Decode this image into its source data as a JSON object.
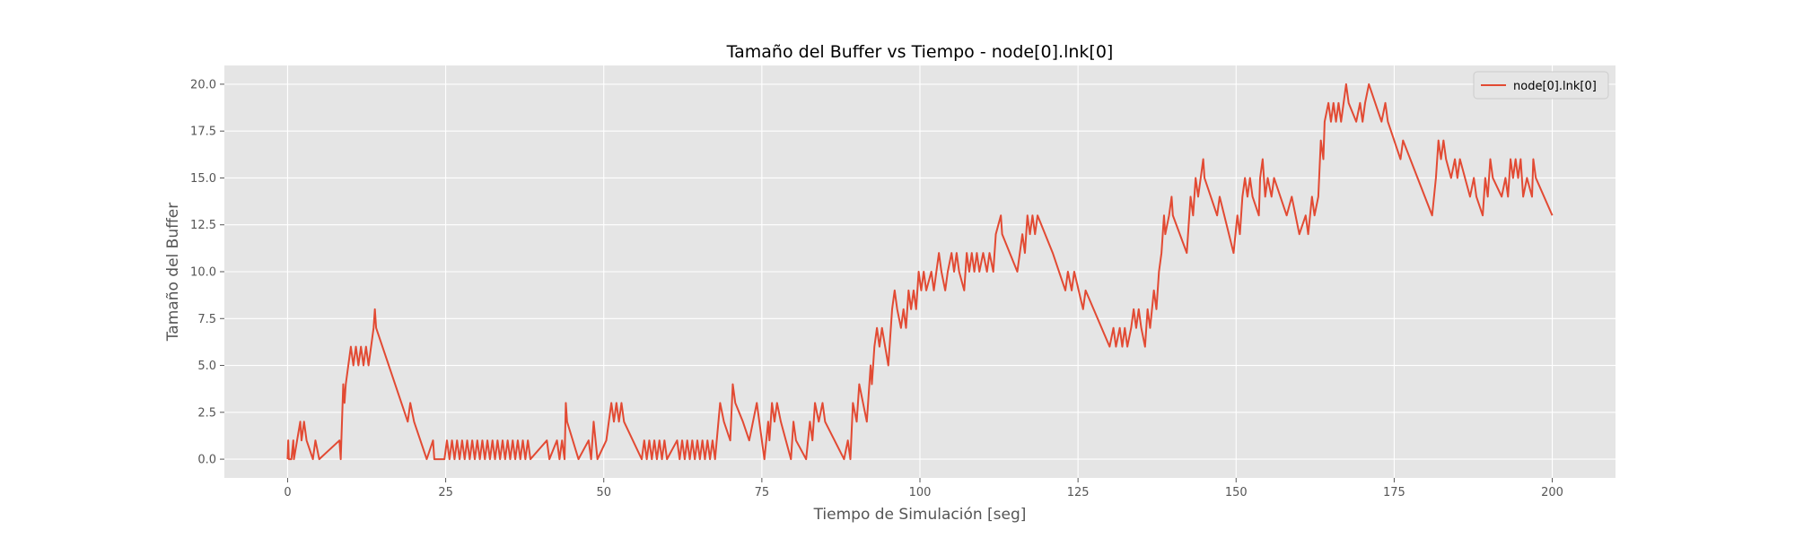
{
  "chart_data": {
    "type": "line",
    "title": "Tamaño del Buffer vs Tiempo - node[0].lnk[0]",
    "xlabel": "Tiempo de Simulación [seg]",
    "ylabel": "Tamaño del Buffer",
    "xlim": [
      -10,
      210
    ],
    "ylim": [
      -1,
      21
    ],
    "xticks": [
      0,
      25,
      50,
      75,
      100,
      125,
      150,
      175,
      200
    ],
    "xtick_labels": [
      "0",
      "25",
      "50",
      "75",
      "100",
      "125",
      "150",
      "175",
      "200"
    ],
    "yticks": [
      0,
      2.5,
      5,
      7.5,
      10,
      12.5,
      15,
      17.5,
      20
    ],
    "ytick_labels": [
      "0.0",
      "2.5",
      "5.0",
      "7.5",
      "10.0",
      "12.5",
      "15.0",
      "17.5",
      "20.0"
    ],
    "grid": true,
    "legend_position": "top-right",
    "colors": {
      "background": "#e5e5e5",
      "grid": "#ffffff",
      "line": "#e24a33"
    },
    "series": [
      {
        "name": "node[0].lnk[0]",
        "color": "#e24a33",
        "points": [
          [
            0,
            0
          ],
          [
            0.1,
            1
          ],
          [
            0.2,
            0
          ],
          [
            0.6,
            0
          ],
          [
            0.9,
            1
          ],
          [
            1,
            0
          ],
          [
            1.5,
            1
          ],
          [
            2,
            2
          ],
          [
            2.2,
            1
          ],
          [
            2.6,
            2
          ],
          [
            3,
            1
          ],
          [
            4,
            0
          ],
          [
            4.4,
            1
          ],
          [
            5,
            0
          ],
          [
            8.2,
            1
          ],
          [
            8.4,
            0
          ],
          [
            8.8,
            4
          ],
          [
            9,
            3
          ],
          [
            9.2,
            4
          ],
          [
            9.6,
            5
          ],
          [
            10,
            6
          ],
          [
            10.4,
            5
          ],
          [
            10.8,
            6
          ],
          [
            11.2,
            5
          ],
          [
            11.6,
            6
          ],
          [
            12,
            5
          ],
          [
            12.4,
            6
          ],
          [
            12.8,
            5
          ],
          [
            13.2,
            6
          ],
          [
            13.6,
            7
          ],
          [
            13.8,
            8
          ],
          [
            14,
            7
          ],
          [
            19,
            2
          ],
          [
            19.4,
            3
          ],
          [
            20,
            2
          ],
          [
            22,
            0
          ],
          [
            23,
            1
          ],
          [
            23.2,
            0
          ],
          [
            24.8,
            0
          ],
          [
            25.2,
            1
          ],
          [
            25.6,
            0
          ],
          [
            26,
            1
          ],
          [
            26.4,
            0
          ],
          [
            26.8,
            1
          ],
          [
            27.2,
            0
          ],
          [
            27.6,
            1
          ],
          [
            28,
            0
          ],
          [
            28.4,
            1
          ],
          [
            28.8,
            0
          ],
          [
            29.2,
            1
          ],
          [
            29.6,
            0
          ],
          [
            30,
            1
          ],
          [
            30.4,
            0
          ],
          [
            30.8,
            1
          ],
          [
            31.2,
            0
          ],
          [
            31.6,
            1
          ],
          [
            32,
            0
          ],
          [
            32.4,
            1
          ],
          [
            32.8,
            0
          ],
          [
            33.2,
            1
          ],
          [
            33.6,
            0
          ],
          [
            34,
            1
          ],
          [
            34.4,
            0
          ],
          [
            34.8,
            1
          ],
          [
            35.2,
            0
          ],
          [
            35.6,
            1
          ],
          [
            36,
            0
          ],
          [
            36.4,
            1
          ],
          [
            36.8,
            0
          ],
          [
            37.2,
            1
          ],
          [
            37.6,
            0
          ],
          [
            38,
            1
          ],
          [
            38.4,
            0
          ],
          [
            41,
            1
          ],
          [
            41.4,
            0
          ],
          [
            42.6,
            1
          ],
          [
            43,
            0
          ],
          [
            43.4,
            1
          ],
          [
            43.8,
            0
          ],
          [
            44,
            3
          ],
          [
            44.2,
            2
          ],
          [
            46,
            0
          ],
          [
            47.6,
            1
          ],
          [
            48,
            0
          ],
          [
            48.4,
            2
          ],
          [
            49,
            0
          ],
          [
            50.4,
            1
          ],
          [
            50.8,
            2
          ],
          [
            51.2,
            3
          ],
          [
            51.6,
            2
          ],
          [
            52,
            3
          ],
          [
            52.4,
            2
          ],
          [
            52.8,
            3
          ],
          [
            53.2,
            2
          ],
          [
            56,
            0
          ],
          [
            56.4,
            1
          ],
          [
            56.8,
            0
          ],
          [
            57.2,
            1
          ],
          [
            57.6,
            0
          ],
          [
            58,
            1
          ],
          [
            58.4,
            0
          ],
          [
            58.8,
            1
          ],
          [
            59.2,
            0
          ],
          [
            59.6,
            1
          ],
          [
            60,
            0
          ],
          [
            61.6,
            1
          ],
          [
            62,
            0
          ],
          [
            62.4,
            1
          ],
          [
            62.8,
            0
          ],
          [
            63.2,
            1
          ],
          [
            63.6,
            0
          ],
          [
            64,
            1
          ],
          [
            64.4,
            0
          ],
          [
            64.8,
            1
          ],
          [
            65.2,
            0
          ],
          [
            65.6,
            1
          ],
          [
            66,
            0
          ],
          [
            66.4,
            1
          ],
          [
            66.8,
            0
          ],
          [
            67.2,
            1
          ],
          [
            67.6,
            0
          ],
          [
            68.4,
            3
          ],
          [
            69,
            2
          ],
          [
            70,
            1
          ],
          [
            70.4,
            4
          ],
          [
            70.8,
            3
          ],
          [
            72,
            2
          ],
          [
            73,
            1
          ],
          [
            74.2,
            3
          ],
          [
            75.4,
            0
          ],
          [
            76,
            2
          ],
          [
            76.2,
            1
          ],
          [
            76.6,
            3
          ],
          [
            77,
            2
          ],
          [
            77.4,
            3
          ],
          [
            78,
            2
          ],
          [
            79.6,
            0
          ],
          [
            80,
            2
          ],
          [
            80.4,
            1
          ],
          [
            82,
            0
          ],
          [
            82.6,
            2
          ],
          [
            83,
            1
          ],
          [
            83.4,
            3
          ],
          [
            84,
            2
          ],
          [
            84.6,
            3
          ],
          [
            85,
            2
          ],
          [
            88,
            0
          ],
          [
            88.6,
            1
          ],
          [
            89,
            0
          ],
          [
            89.4,
            3
          ],
          [
            90,
            2
          ],
          [
            90.4,
            4
          ],
          [
            91.6,
            2
          ],
          [
            92.2,
            5
          ],
          [
            92.4,
            4
          ],
          [
            92.8,
            6
          ],
          [
            93.2,
            7
          ],
          [
            93.6,
            6
          ],
          [
            94,
            7
          ],
          [
            95,
            5
          ],
          [
            95.6,
            8
          ],
          [
            96,
            9
          ],
          [
            96.4,
            8
          ],
          [
            97,
            7
          ],
          [
            97.4,
            8
          ],
          [
            97.8,
            7
          ],
          [
            98.2,
            9
          ],
          [
            98.6,
            8
          ],
          [
            99,
            9
          ],
          [
            99.4,
            8
          ],
          [
            99.8,
            10
          ],
          [
            100.2,
            9
          ],
          [
            100.6,
            10
          ],
          [
            101,
            9
          ],
          [
            101.8,
            10
          ],
          [
            102.2,
            9
          ],
          [
            102.6,
            10
          ],
          [
            103,
            11
          ],
          [
            103.4,
            10
          ],
          [
            104,
            9
          ],
          [
            104.4,
            10
          ],
          [
            105,
            11
          ],
          [
            105.4,
            10
          ],
          [
            105.8,
            11
          ],
          [
            106.2,
            10
          ],
          [
            107,
            9
          ],
          [
            107.4,
            11
          ],
          [
            107.8,
            10
          ],
          [
            108.2,
            11
          ],
          [
            108.6,
            10
          ],
          [
            109,
            11
          ],
          [
            109.4,
            10
          ],
          [
            110,
            11
          ],
          [
            110.6,
            10
          ],
          [
            111,
            11
          ],
          [
            111.6,
            10
          ],
          [
            112,
            12
          ],
          [
            112.8,
            13
          ],
          [
            113,
            12
          ],
          [
            115.4,
            10
          ],
          [
            116.2,
            12
          ],
          [
            116.6,
            11
          ],
          [
            117,
            13
          ],
          [
            117.4,
            12
          ],
          [
            117.8,
            13
          ],
          [
            118.2,
            12
          ],
          [
            118.6,
            13
          ],
          [
            121,
            11
          ],
          [
            123,
            9
          ],
          [
            123.4,
            10
          ],
          [
            124,
            9
          ],
          [
            124.4,
            10
          ],
          [
            125.8,
            8
          ],
          [
            126.2,
            9
          ],
          [
            130,
            6
          ],
          [
            130.6,
            7
          ],
          [
            131,
            6
          ],
          [
            131.6,
            7
          ],
          [
            132,
            6
          ],
          [
            132.4,
            7
          ],
          [
            132.8,
            6
          ],
          [
            133.4,
            7
          ],
          [
            133.8,
            8
          ],
          [
            134.2,
            7
          ],
          [
            134.6,
            8
          ],
          [
            135,
            7
          ],
          [
            135.6,
            6
          ],
          [
            136,
            8
          ],
          [
            136.4,
            7
          ],
          [
            137,
            9
          ],
          [
            137.4,
            8
          ],
          [
            137.8,
            10
          ],
          [
            138.2,
            11
          ],
          [
            138.6,
            13
          ],
          [
            138.8,
            12
          ],
          [
            139.4,
            13
          ],
          [
            139.8,
            14
          ],
          [
            140,
            13
          ],
          [
            142.2,
            11
          ],
          [
            142.8,
            14
          ],
          [
            143.2,
            13
          ],
          [
            143.6,
            15
          ],
          [
            144,
            14
          ],
          [
            144.4,
            15
          ],
          [
            144.8,
            16
          ],
          [
            145,
            15
          ],
          [
            147,
            13
          ],
          [
            147.4,
            14
          ],
          [
            149.6,
            11
          ],
          [
            150.2,
            13
          ],
          [
            150.6,
            12
          ],
          [
            151,
            14
          ],
          [
            151.4,
            15
          ],
          [
            151.8,
            14
          ],
          [
            152.2,
            15
          ],
          [
            152.6,
            14
          ],
          [
            153.6,
            13
          ],
          [
            153.8,
            15
          ],
          [
            154.2,
            16
          ],
          [
            154.6,
            14
          ],
          [
            155,
            15
          ],
          [
            155.6,
            14
          ],
          [
            156,
            15
          ],
          [
            158,
            13
          ],
          [
            158.8,
            14
          ],
          [
            160,
            12
          ],
          [
            161,
            13
          ],
          [
            161.4,
            12
          ],
          [
            162,
            14
          ],
          [
            162.4,
            13
          ],
          [
            163,
            14
          ],
          [
            163.4,
            17
          ],
          [
            163.8,
            16
          ],
          [
            164,
            18
          ],
          [
            164.6,
            19
          ],
          [
            165,
            18
          ],
          [
            165.4,
            19
          ],
          [
            165.8,
            18
          ],
          [
            166.2,
            19
          ],
          [
            166.6,
            18
          ],
          [
            167,
            19
          ],
          [
            167.4,
            20
          ],
          [
            167.8,
            19
          ],
          [
            169,
            18
          ],
          [
            169.6,
            19
          ],
          [
            170,
            18
          ],
          [
            170.4,
            19
          ],
          [
            171,
            20
          ],
          [
            172,
            19
          ],
          [
            173,
            18
          ],
          [
            173.6,
            19
          ],
          [
            174,
            18
          ],
          [
            176,
            16
          ],
          [
            176.4,
            17
          ],
          [
            181,
            13
          ],
          [
            181.6,
            15
          ],
          [
            182,
            17
          ],
          [
            182.4,
            16
          ],
          [
            182.8,
            17
          ],
          [
            183.2,
            16
          ],
          [
            184,
            15
          ],
          [
            184.6,
            16
          ],
          [
            185,
            15
          ],
          [
            185.4,
            16
          ],
          [
            187,
            14
          ],
          [
            187.6,
            15
          ],
          [
            188,
            14
          ],
          [
            189,
            13
          ],
          [
            189.4,
            15
          ],
          [
            189.8,
            14
          ],
          [
            190.2,
            16
          ],
          [
            190.6,
            15
          ],
          [
            192,
            14
          ],
          [
            192.6,
            15
          ],
          [
            193,
            14
          ],
          [
            193.4,
            16
          ],
          [
            193.8,
            15
          ],
          [
            194.2,
            16
          ],
          [
            194.6,
            15
          ],
          [
            195,
            16
          ],
          [
            195.4,
            14
          ],
          [
            196,
            15
          ],
          [
            196.8,
            14
          ],
          [
            197,
            16
          ],
          [
            197.4,
            15
          ],
          [
            200,
            13
          ]
        ]
      }
    ]
  }
}
